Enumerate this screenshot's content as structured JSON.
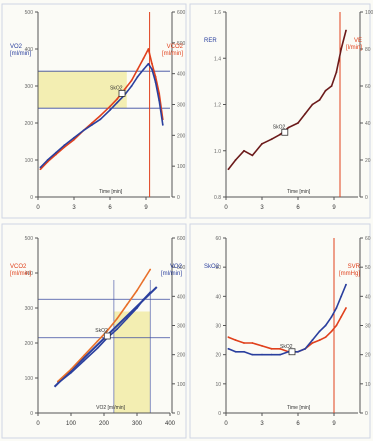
{
  "colors": {
    "blue": "#2a3f9e",
    "red": "#e0401c",
    "orange": "#e8702a",
    "darkred": "#6b1a1a",
    "grid": "#3a4aa0",
    "highlight": "#f3eeb2",
    "background": "#fbfbf6",
    "frame": "#cfd6e4"
  },
  "chart_data": [
    {
      "type": "line",
      "panel": "top-left",
      "left_axis_label": "VO2\n[ml/min]",
      "right_axis_label": "VCO2\n[ml/min]",
      "xlabel": "Time [min]",
      "annotation": "SkO2",
      "xlim": [
        0,
        11
      ],
      "x_ticks": [
        "0",
        "3",
        "6",
        "9"
      ],
      "left_ylim": [
        0,
        1000
      ],
      "left_ticks": [
        "0",
        "100",
        "200",
        "300",
        "400",
        "500"
      ],
      "right_ylim": [
        0,
        1000
      ],
      "right_ticks": [
        "0",
        "100",
        "200",
        "300",
        "400",
        "500",
        "600"
      ],
      "vertical_marker_x": 9.3,
      "series": [
        {
          "color": "red",
          "x": [
            0.2,
            0.8,
            1.5,
            2.2,
            3,
            3.8,
            4.5,
            5.2,
            6,
            6.6,
            7.2,
            7.8,
            8.3,
            8.8,
            9.2,
            9.5,
            9.8,
            10.1,
            10.4
          ],
          "y": [
            150,
            190,
            230,
            270,
            310,
            360,
            400,
            440,
            490,
            530,
            580,
            630,
            690,
            750,
            800,
            720,
            650,
            560,
            420
          ]
        },
        {
          "color": "blue",
          "x": [
            0.2,
            0.8,
            1.5,
            2.2,
            3,
            3.8,
            4.5,
            5.2,
            6,
            6.6,
            7.2,
            7.8,
            8.3,
            8.8,
            9.2,
            9.5,
            9.8,
            10.1,
            10.4
          ],
          "y": [
            160,
            200,
            240,
            280,
            320,
            360,
            390,
            420,
            470,
            510,
            550,
            600,
            650,
            690,
            720,
            690,
            620,
            520,
            390
          ]
        }
      ]
    },
    {
      "type": "line",
      "panel": "top-right",
      "left_axis_label": "RER",
      "right_axis_label": "VE\n[l/min]",
      "xlabel": "Time [min]",
      "annotation": "SkO2",
      "xlim": [
        0,
        11
      ],
      "x_ticks": [
        "0",
        "3",
        "6",
        "9"
      ],
      "left_ylim": [
        0.8,
        1.6
      ],
      "left_ticks": [
        "0.8",
        "1.0",
        "1.2",
        "1.4",
        "1.6"
      ],
      "right_ylim": [
        0,
        100
      ],
      "right_ticks": [
        "0",
        "20",
        "40",
        "60",
        "80",
        "100"
      ],
      "vertical_marker_x": 9.5,
      "series": [
        {
          "color": "darkred",
          "x": [
            0.2,
            0.8,
            1.5,
            2.2,
            3,
            3.8,
            4.5,
            5.2,
            6,
            6.6,
            7.2,
            7.8,
            8.3,
            8.8,
            9.2,
            9.6,
            10.0
          ],
          "y": [
            0.92,
            0.96,
            1.0,
            0.98,
            1.03,
            1.05,
            1.07,
            1.1,
            1.12,
            1.16,
            1.2,
            1.22,
            1.26,
            1.28,
            1.34,
            1.44,
            1.52
          ]
        }
      ]
    },
    {
      "type": "scatter",
      "panel": "bottom-left",
      "left_axis_label": "VCO2\n[ml/min]",
      "right_axis_label": "VO2\n[ml/min]",
      "xlabel": "VO2 [ml/min]",
      "annotation": "SkO2",
      "xlim": [
        0,
        400
      ],
      "x_ticks": [
        "0",
        "100",
        "200",
        "300",
        "400"
      ],
      "left_ylim": [
        0,
        1000
      ],
      "left_ticks": [
        "0",
        "100",
        "200",
        "300",
        "400",
        "500"
      ],
      "right_ylim": [
        0,
        1000
      ],
      "right_ticks": [
        "0",
        "100",
        "200",
        "300",
        "400",
        "500",
        "600"
      ],
      "series": [
        {
          "color": "orange",
          "x": [
            60,
            100,
            140,
            180,
            210,
            240,
            270,
            300,
            320,
            340
          ],
          "y": [
            180,
            250,
            330,
            410,
            470,
            540,
            620,
            700,
            760,
            820
          ]
        },
        {
          "color": "blue",
          "x": [
            60,
            100,
            140,
            180,
            210,
            240,
            270,
            300,
            320,
            340
          ],
          "y": [
            170,
            230,
            300,
            370,
            430,
            480,
            540,
            600,
            650,
            690
          ]
        }
      ]
    },
    {
      "type": "line",
      "panel": "bottom-right",
      "left_axis_label": "SkO2",
      "right_axis_label": "SVR\n[mmHg]",
      "xlabel": "Time [min]",
      "annotation": "SkO2",
      "xlim": [
        0,
        11
      ],
      "x_ticks": [
        "0",
        "3",
        "6",
        "9"
      ],
      "left_ylim": [
        0,
        60
      ],
      "left_ticks": [
        "0",
        "10",
        "20",
        "30",
        "40",
        "50",
        "60"
      ],
      "right_ylim": [
        0,
        60
      ],
      "right_ticks": [
        "0",
        "10",
        "20",
        "30",
        "40",
        "50",
        "60"
      ],
      "vertical_marker_x": 9.0,
      "series": [
        {
          "color": "red",
          "x": [
            0.2,
            0.8,
            1.5,
            2.2,
            3,
            3.8,
            4.5,
            5.2,
            6,
            6.6,
            7.2,
            7.8,
            8.3,
            8.8,
            9.2,
            9.6,
            10.0
          ],
          "y": [
            26,
            25,
            24,
            24,
            23,
            22,
            22,
            21,
            21,
            22,
            24,
            25,
            26,
            28,
            30,
            33,
            36
          ]
        },
        {
          "color": "blue",
          "x": [
            0.2,
            0.8,
            1.5,
            2.2,
            3,
            3.8,
            4.5,
            5.2,
            6,
            6.6,
            7.2,
            7.8,
            8.3,
            8.8,
            9.2,
            9.6,
            10.0
          ],
          "y": [
            22,
            21,
            21,
            20,
            20,
            20,
            20,
            21,
            21,
            22,
            25,
            28,
            30,
            33,
            36,
            40,
            44
          ]
        }
      ]
    }
  ]
}
